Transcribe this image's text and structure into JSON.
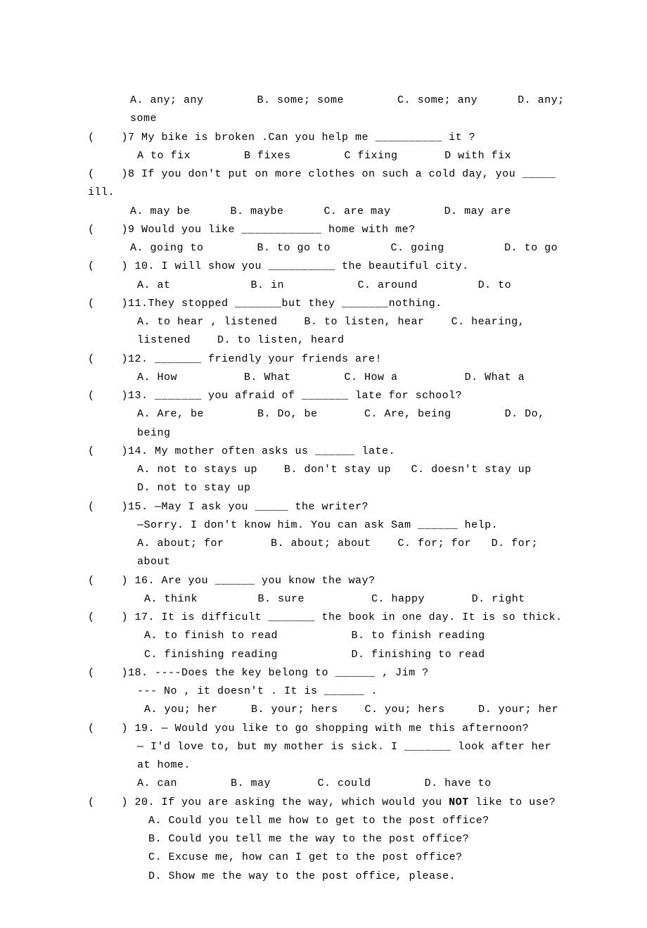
{
  "lines": [
    {
      "cls": "indent1",
      "text": "A. any; any        B. some; some        C. some; any      D. any; some"
    },
    {
      "cls": "indent0",
      "text": "(    )7 My bike is broken .Can you help me __________ it ?"
    },
    {
      "cls": "indent2",
      "text": "A to fix        B fixes        C fixing       D with fix"
    },
    {
      "cls": "indent0",
      "text": "(    )8 If you don't put on more clothes on such a cold day, you _____ ill."
    },
    {
      "cls": "indent1",
      "text": "A. may be      B. maybe      C. are may        D. may are"
    },
    {
      "cls": "indent0",
      "text": "(    )9 Would you like ____________ home with me?"
    },
    {
      "cls": "indent1",
      "text": "A. going to        B. to go to         C. going         D. to go"
    },
    {
      "cls": "indent0",
      "text": "(    ) 10. I will show you __________ the beautiful city."
    },
    {
      "cls": "indent2",
      "text": "A. at            B. in           C. around         D. to"
    },
    {
      "cls": "indent0",
      "text": "(    )11.They stopped _______but they _______nothing."
    },
    {
      "cls": "indent2",
      "text": "A. to hear , listened    B. to listen, hear    C. hearing, listened    D. to listen, heard"
    },
    {
      "cls": "indent0",
      "text": "(    )12. _______ friendly your friends are!"
    },
    {
      "cls": "indent2",
      "text": "A. How          B. What        C. How a          D. What a"
    },
    {
      "cls": "indent0",
      "text": "(    )13. _______ you afraid of _______ late for school?"
    },
    {
      "cls": "indent2",
      "text": "A. Are, be        B. Do, be       C. Are, being        D. Do, being"
    },
    {
      "cls": "indent0",
      "text": "(    )14. My mother often asks us ______ late."
    },
    {
      "cls": "indent2",
      "text": "A. not to stays up    B. don't stay up   C. doesn't stay up    D. not to stay up"
    },
    {
      "cls": "indent0",
      "text": "(    )15. —May I ask you _____ the writer?"
    },
    {
      "cls": "indent2",
      "text": "—Sorry. I don't know him. You can ask Sam ______ help."
    },
    {
      "cls": "indent2",
      "text": "A. about; for       B. about; about    C. for; for   D. for; about"
    },
    {
      "cls": "indent0",
      "text": "(    ) 16. Are you ______ you know the way?"
    },
    {
      "cls": "indent3",
      "text": "A. think         B. sure          C. happy       D. right"
    },
    {
      "cls": "indent0",
      "text": "(    ) 17. It is difficult _______ the book in one day. It is so thick."
    },
    {
      "cls": "indent3",
      "text": "A. to finish to read           B. to finish reading"
    },
    {
      "cls": "indent3",
      "text": "C. finishing reading           D. finishing to read"
    },
    {
      "cls": "indent0",
      "text": "(    )18. ----Does the key belong to ______ , Jim ?"
    },
    {
      "cls": "indent2",
      "text": "--- No , it doesn't . It is ______ ."
    },
    {
      "cls": "indent3",
      "text": "A. you; her     B. your; hers    C. you; hers     D. your; her"
    },
    {
      "cls": "indent0",
      "text": "(    ) 19. — Would you like to go shopping with me this afternoon?"
    },
    {
      "cls": "indent2",
      "text": "— I'd love to, but my mother is sick. I _______ look after her at home."
    },
    {
      "cls": "indent2",
      "text": "A. can        B. may       C. could        D. have to"
    },
    {
      "cls": "indent0",
      "text": "(    ) 20. If you are asking the way, which would you <b>NOT</b> like to use?"
    },
    {
      "cls": "indent4",
      "text": "A. Could you tell me how to get to the post office?"
    },
    {
      "cls": "indent4",
      "text": "B. Could you tell me the way to the post office?"
    },
    {
      "cls": "indent4",
      "text": "C. Excuse me, how can I get to the post office?"
    },
    {
      "cls": "indent4",
      "text": "D. Show me the way to the post office, please."
    }
  ]
}
